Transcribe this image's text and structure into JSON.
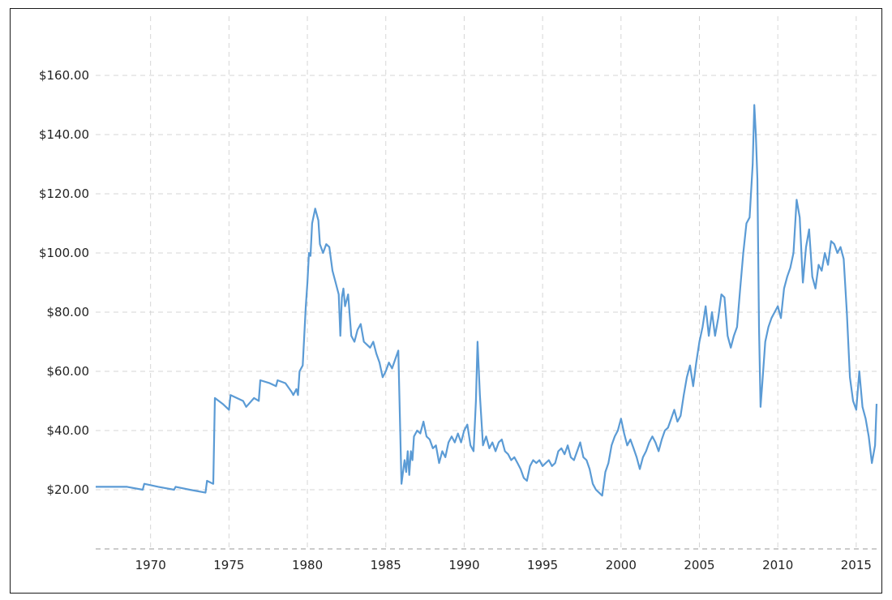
{
  "chart_data": {
    "type": "line",
    "title": "",
    "xlabel": "",
    "ylabel": "",
    "xlim": [
      1966.5,
      2016.3
    ],
    "ylim": [
      0,
      180
    ],
    "grid": true,
    "x_ticks": [
      "1970",
      "1975",
      "1980",
      "1985",
      "1990",
      "1995",
      "2000",
      "2005",
      "2010",
      "2015"
    ],
    "y_ticks": [
      "$20.00",
      "$40.00",
      "$60.00",
      "$80.00",
      "$100.00",
      "$120.00",
      "$140.00",
      "$160.00"
    ],
    "series": [
      {
        "color": "#5b9bd5",
        "x": [
          1966.5,
          1967.5,
          1968.5,
          1969.5,
          1969.6,
          1970.5,
          1971.5,
          1971.6,
          1972.5,
          1973.5,
          1973.6,
          1974.0,
          1974.1,
          1974.6,
          1975.0,
          1975.1,
          1975.9,
          1976.1,
          1976.6,
          1976.9,
          1977.0,
          1977.6,
          1978.0,
          1978.1,
          1978.6,
          1979.0,
          1979.1,
          1979.3,
          1979.4,
          1979.5,
          1979.7,
          1979.9,
          1980.0,
          1980.1,
          1980.2,
          1980.3,
          1980.5,
          1980.7,
          1980.8,
          1981.0,
          1981.2,
          1981.4,
          1981.6,
          1981.8,
          1982.0,
          1982.1,
          1982.2,
          1982.3,
          1982.4,
          1982.6,
          1982.8,
          1983.0,
          1983.2,
          1983.4,
          1983.6,
          1983.8,
          1984.0,
          1984.2,
          1984.4,
          1984.6,
          1984.8,
          1985.0,
          1985.2,
          1985.4,
          1985.6,
          1985.8,
          1986.0,
          1986.2,
          1986.3,
          1986.4,
          1986.5,
          1986.6,
          1986.7,
          1986.8,
          1987.0,
          1987.2,
          1987.4,
          1987.6,
          1987.8,
          1988.0,
          1988.2,
          1988.4,
          1988.6,
          1988.8,
          1989.0,
          1989.2,
          1989.4,
          1989.6,
          1989.8,
          1990.0,
          1990.2,
          1990.4,
          1990.6,
          1990.75,
          1990.85,
          1991.0,
          1991.2,
          1991.4,
          1991.6,
          1991.8,
          1992.0,
          1992.2,
          1992.4,
          1992.6,
          1992.8,
          1993.0,
          1993.2,
          1993.4,
          1993.6,
          1993.8,
          1994.0,
          1994.2,
          1994.4,
          1994.6,
          1994.8,
          1995.0,
          1995.2,
          1995.4,
          1995.6,
          1995.8,
          1996.0,
          1996.2,
          1996.4,
          1996.6,
          1996.8,
          1997.0,
          1997.2,
          1997.4,
          1997.6,
          1997.8,
          1998.0,
          1998.2,
          1998.4,
          1998.6,
          1998.8,
          1999.0,
          1999.2,
          1999.4,
          1999.6,
          1999.8,
          2000.0,
          2000.2,
          2000.4,
          2000.6,
          2000.8,
          2001.0,
          2001.2,
          2001.4,
          2001.6,
          2001.8,
          2002.0,
          2002.2,
          2002.4,
          2002.6,
          2002.8,
          2003.0,
          2003.2,
          2003.4,
          2003.6,
          2003.8,
          2004.0,
          2004.2,
          2004.4,
          2004.6,
          2004.8,
          2005.0,
          2005.2,
          2005.4,
          2005.6,
          2005.8,
          2006.0,
          2006.2,
          2006.4,
          2006.6,
          2006.8,
          2007.0,
          2007.2,
          2007.4,
          2007.6,
          2007.8,
          2008.0,
          2008.2,
          2008.4,
          2008.5,
          2008.6,
          2008.7,
          2008.8,
          2008.9,
          2009.0,
          2009.2,
          2009.4,
          2009.6,
          2009.8,
          2010.0,
          2010.2,
          2010.4,
          2010.6,
          2010.8,
          2011.0,
          2011.2,
          2011.4,
          2011.6,
          2011.8,
          2012.0,
          2012.2,
          2012.4,
          2012.6,
          2012.8,
          2013.0,
          2013.2,
          2013.4,
          2013.6,
          2013.8,
          2014.0,
          2014.2,
          2014.4,
          2014.6,
          2014.8,
          2015.0,
          2015.2,
          2015.4,
          2015.6,
          2015.8,
          2016.0,
          2016.2,
          2016.3
        ],
        "y": [
          21,
          21,
          21,
          20,
          22,
          21,
          20,
          21,
          20,
          19,
          23,
          22,
          51,
          49,
          47,
          52,
          50,
          48,
          51,
          50,
          57,
          56,
          55,
          57,
          56,
          53,
          52,
          54,
          52,
          60,
          62,
          82,
          90,
          100,
          99,
          110,
          115,
          111,
          103,
          100,
          103,
          102,
          94,
          90,
          86,
          72,
          85,
          88,
          82,
          86,
          72,
          70,
          74,
          76,
          70,
          69,
          68,
          70,
          66,
          63,
          58,
          60,
          63,
          61,
          64,
          67,
          22,
          30,
          26,
          33,
          25,
          33,
          30,
          38,
          40,
          39,
          43,
          38,
          37,
          34,
          35,
          29,
          33,
          31,
          36,
          38,
          36,
          39,
          36,
          40,
          42,
          35,
          33,
          50,
          70,
          52,
          35,
          38,
          34,
          36,
          33,
          36,
          37,
          33,
          32,
          30,
          31,
          29,
          27,
          24,
          23,
          28,
          30,
          29,
          30,
          28,
          29,
          30,
          28,
          29,
          33,
          34,
          32,
          35,
          31,
          30,
          33,
          36,
          31,
          30,
          27,
          22,
          20,
          19,
          18,
          26,
          29,
          35,
          38,
          40,
          44,
          39,
          35,
          37,
          34,
          31,
          27,
          31,
          33,
          36,
          38,
          36,
          33,
          37,
          40,
          41,
          44,
          47,
          43,
          45,
          52,
          58,
          62,
          55,
          63,
          70,
          75,
          82,
          72,
          80,
          72,
          78,
          86,
          85,
          72,
          68,
          72,
          75,
          88,
          100,
          110,
          112,
          130,
          150,
          140,
          125,
          75,
          48,
          55,
          70,
          75,
          78,
          80,
          82,
          78,
          88,
          92,
          95,
          100,
          118,
          112,
          90,
          102,
          108,
          92,
          88,
          96,
          94,
          100,
          96,
          104,
          103,
          100,
          102,
          98,
          80,
          58,
          50,
          47,
          60,
          48,
          44,
          38,
          29,
          35,
          49
        ]
      }
    ]
  }
}
